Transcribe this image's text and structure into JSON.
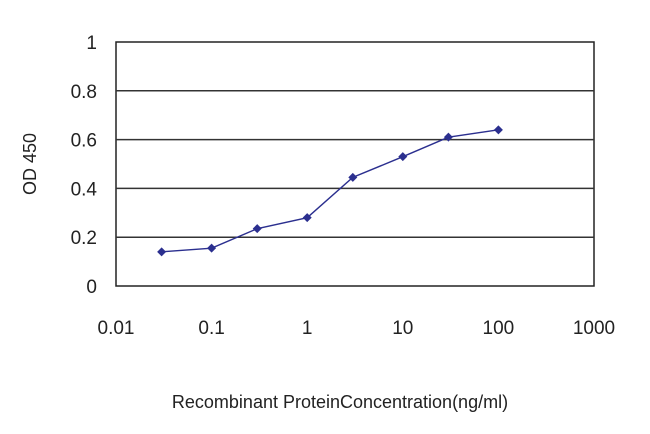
{
  "chart_data": {
    "type": "line",
    "title": "",
    "xlabel": "Recombinant ProteinConcentration(ng/ml)",
    "ylabel": "OD 450",
    "x_scale": "log",
    "xlim": [
      0.01,
      1000
    ],
    "ylim": [
      0,
      1
    ],
    "x_tick_labels": [
      "0.01",
      "0.1",
      "1",
      "10",
      "100",
      "1000"
    ],
    "x_tick_values": [
      0.01,
      0.1,
      1,
      10,
      100,
      1000
    ],
    "y_tick_labels": [
      "0",
      "0.2",
      "0.4",
      "0.6",
      "0.8",
      "1"
    ],
    "y_tick_values": [
      0,
      0.2,
      0.4,
      0.6,
      0.8,
      1
    ],
    "grid": "horizontal",
    "legend": "none",
    "series": [
      {
        "x": [
          0.03,
          0.1,
          0.3,
          1,
          3,
          10,
          30,
          100
        ],
        "y": [
          0.14,
          0.155,
          0.235,
          0.28,
          0.445,
          0.53,
          0.61,
          0.64
        ],
        "color": "#2b2f8f",
        "marker": "diamond"
      }
    ]
  }
}
